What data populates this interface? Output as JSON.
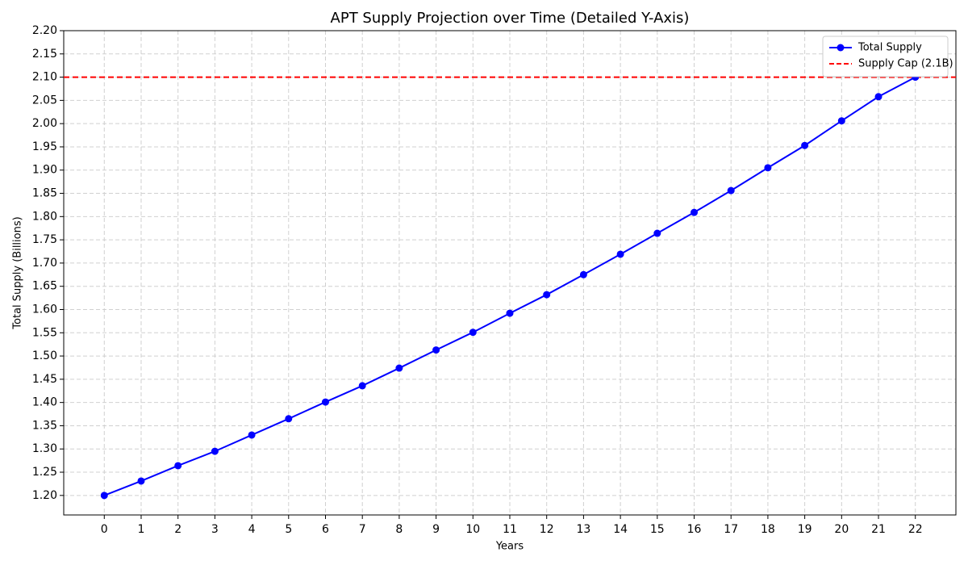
{
  "chart_data": {
    "type": "line",
    "title": "APT Supply Projection over Time (Detailed Y-Axis)",
    "x_label": "Years",
    "y_label": "Total Supply (Billions)",
    "x": [
      0,
      1,
      2,
      3,
      4,
      5,
      6,
      7,
      8,
      9,
      10,
      11,
      12,
      13,
      14,
      15,
      16,
      17,
      18,
      19,
      20,
      21,
      22
    ],
    "series": [
      {
        "name": "Total Supply",
        "color": "#0000ff",
        "values": [
          1.2,
          1.231,
          1.264,
          1.295,
          1.33,
          1.365,
          1.401,
          1.436,
          1.474,
          1.513,
          1.551,
          1.592,
          1.632,
          1.675,
          1.719,
          1.764,
          1.809,
          1.856,
          1.905,
          1.953,
          2.006,
          2.058,
          2.1
        ]
      }
    ],
    "hlines": [
      {
        "name": "Supply Cap (2.1B)",
        "value": 2.1,
        "color": "#ff0000"
      }
    ],
    "xlim": [
      -1.1,
      23.1
    ],
    "ylim": [
      1.158,
      2.2
    ],
    "xticks": [
      0,
      1,
      2,
      3,
      4,
      5,
      6,
      7,
      8,
      9,
      10,
      11,
      12,
      13,
      14,
      15,
      16,
      17,
      18,
      19,
      20,
      21,
      22
    ],
    "yticks": [
      {
        "value": 1.2,
        "label": "1.20"
      },
      {
        "value": 1.25,
        "label": "1.25"
      },
      {
        "value": 1.3,
        "label": "1.30"
      },
      {
        "value": 1.35,
        "label": "1.35"
      },
      {
        "value": 1.4,
        "label": "1.40"
      },
      {
        "value": 1.45,
        "label": "1.45"
      },
      {
        "value": 1.5,
        "label": "1.50"
      },
      {
        "value": 1.55,
        "label": "1.55"
      },
      {
        "value": 1.6,
        "label": "1.60"
      },
      {
        "value": 1.65,
        "label": "1.65"
      },
      {
        "value": 1.7,
        "label": "1.70"
      },
      {
        "value": 1.75,
        "label": "1.75"
      },
      {
        "value": 1.8,
        "label": "1.80"
      },
      {
        "value": 1.85,
        "label": "1.85"
      },
      {
        "value": 1.9,
        "label": "1.90"
      },
      {
        "value": 1.95,
        "label": "1.95"
      },
      {
        "value": 2.0,
        "label": "2.00"
      },
      {
        "value": 2.05,
        "label": "2.05"
      },
      {
        "value": 2.1,
        "label": "2.10"
      },
      {
        "value": 2.15,
        "label": "2.15"
      },
      {
        "value": 2.2,
        "label": "2.20"
      }
    ],
    "grid": true,
    "legend": "upper-right"
  }
}
